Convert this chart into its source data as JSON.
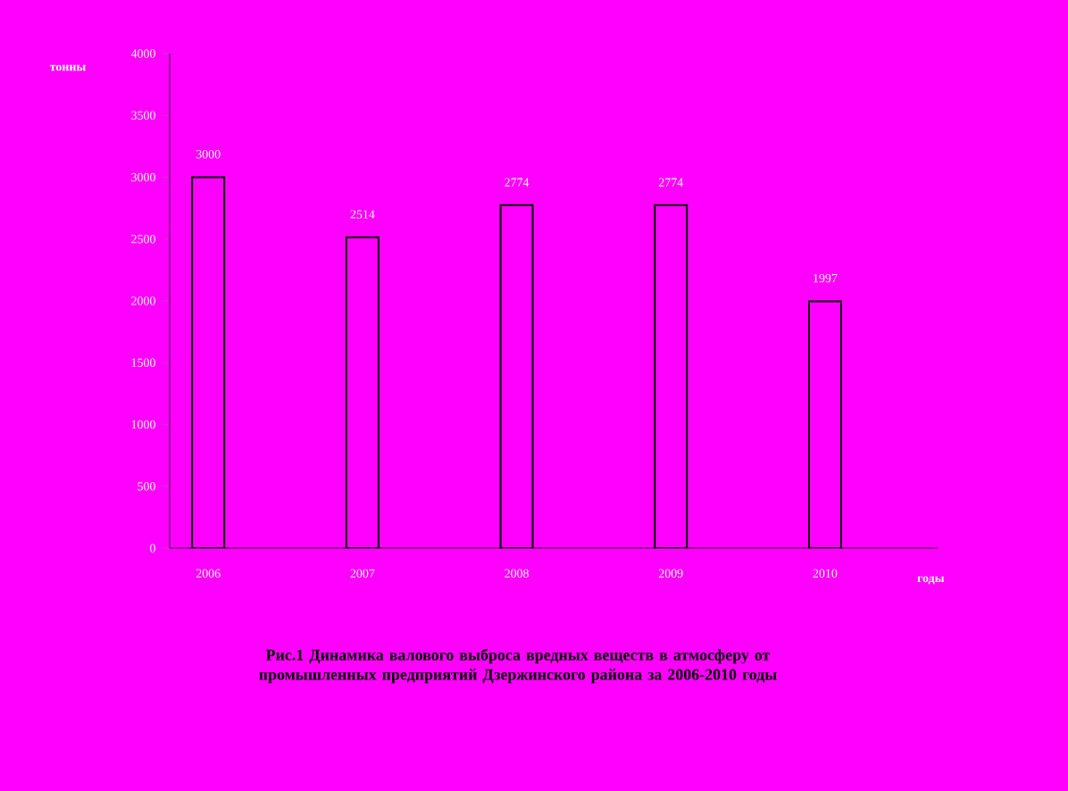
{
  "chart_data": {
    "type": "bar",
    "categories": [
      "2006",
      "2007",
      "2008",
      "2009",
      "2010"
    ],
    "values": [
      3000,
      2514,
      2774,
      2774,
      1997
    ],
    "color": "#ff00ff",
    "ylim": [
      0,
      4000
    ],
    "yticks": [
      0,
      500,
      1000,
      1500,
      2000,
      2500,
      3000,
      3500,
      4000
    ],
    "ylabel": "тонны",
    "xlabel": "годы",
    "data_labels": true,
    "grid": false,
    "annotations": [
      "Рис.1 Динамика валового выброса вредных веществ в атмосферу от  промышленных предприятий Дзержинского района за 2006-2010 годы"
    ]
  }
}
